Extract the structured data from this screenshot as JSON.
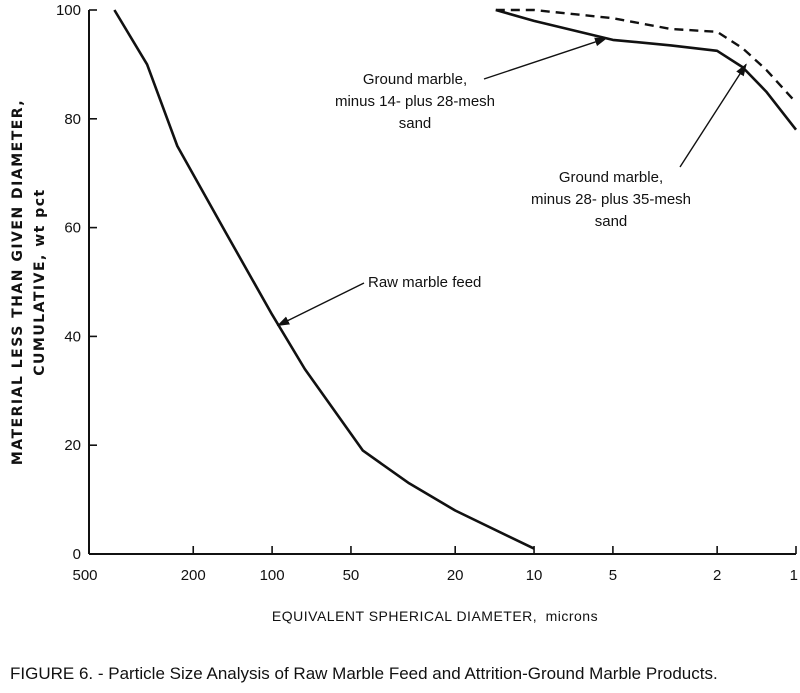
{
  "chart_data": {
    "type": "line",
    "xscale": "log",
    "xreversed": true,
    "xlim": [
      500,
      1
    ],
    "ylim": [
      0,
      100
    ],
    "xticks": [
      500,
      200,
      100,
      50,
      20,
      10,
      5,
      2,
      1
    ],
    "yticks": [
      0,
      20,
      40,
      60,
      80,
      100
    ],
    "xlabel_main": "EQUIVALENT SPHERICAL DIAMETER,",
    "xlabel_unit": "microns",
    "ylabel_line1": "MATERIAL LESS THAN GIVEN DIAMETER,",
    "ylabel_line2": "CUMULATIVE, wt pct",
    "series": [
      {
        "name": "Raw marble feed",
        "style": "solid",
        "x": [
          400,
          300,
          230,
          150,
          100,
          75,
          45,
          30,
          20,
          10
        ],
        "y": [
          100,
          90,
          75,
          59,
          44,
          34,
          19,
          13,
          8,
          1
        ]
      },
      {
        "name": "Ground marble, minus 14- plus 28-mesh sand",
        "style": "solid",
        "x": [
          14,
          10,
          5,
          3,
          2,
          1.6,
          1.3,
          1
        ],
        "y": [
          100,
          98,
          94.5,
          93.5,
          92.5,
          89.5,
          85,
          78
        ]
      },
      {
        "name": "Ground marble, minus 28- plus 35-mesh sand",
        "style": "dashed",
        "x": [
          14,
          10,
          5,
          3,
          2,
          1.6,
          1.3,
          1
        ],
        "y": [
          100,
          100,
          98.5,
          96.5,
          96,
          93,
          89,
          83
        ]
      }
    ],
    "annotations": [
      {
        "series": 0,
        "lines": [
          "Raw marble feed"
        ],
        "point_x": 95,
        "point_y": 42
      },
      {
        "series": 1,
        "lines": [
          "Ground marble,",
          "minus 14- plus 28-mesh",
          "sand"
        ],
        "point_x": 5.3,
        "point_y": 94.8
      },
      {
        "series": 2,
        "lines": [
          "Ground marble,",
          "minus 28- plus 35-mesh",
          "sand"
        ],
        "point_x": 1.55,
        "point_y": 90
      }
    ]
  },
  "caption": "FIGURE 6. - Particle Size Analysis of Raw Marble Feed and Attrition-Ground Marble Products."
}
